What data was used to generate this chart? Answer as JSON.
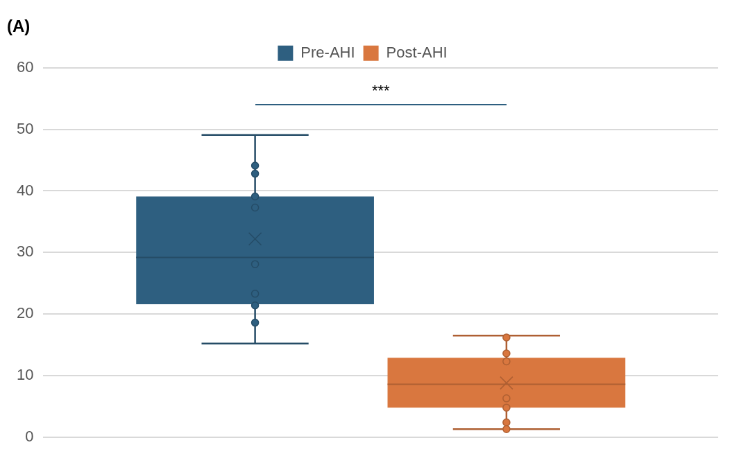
{
  "chart_data": {
    "type": "box",
    "title": "(A)",
    "categories": [
      null
    ],
    "series": [
      {
        "name": "Pre-AHI",
        "color": "#2e5f80",
        "boxes": [
          {
            "low": 15.2,
            "q1": 21.6,
            "median": 29.2,
            "q3": 39.1,
            "high": 49.1,
            "mean": 32.2,
            "outliers": [
              44.1,
              42.8,
              39.1,
              37.3,
              28.1,
              23.3,
              21.4,
              18.6
            ]
          }
        ]
      },
      {
        "name": "Post-AHI",
        "color": "#d9773f",
        "boxes": [
          {
            "low": 1.3,
            "q1": 4.8,
            "median": 8.6,
            "q3": 12.9,
            "high": 16.5,
            "mean": 8.8,
            "outliers": [
              16.2,
              13.6,
              12.3,
              6.3,
              4.8,
              2.4,
              1.3
            ]
          }
        ]
      }
    ],
    "ylim": [
      0,
      60
    ],
    "yticks": [
      0,
      10,
      20,
      30,
      40,
      50,
      60
    ],
    "grid": "y",
    "tick_labels": "y",
    "legend": "top",
    "marker": "circle",
    "annotations": [
      "***"
    ]
  }
}
